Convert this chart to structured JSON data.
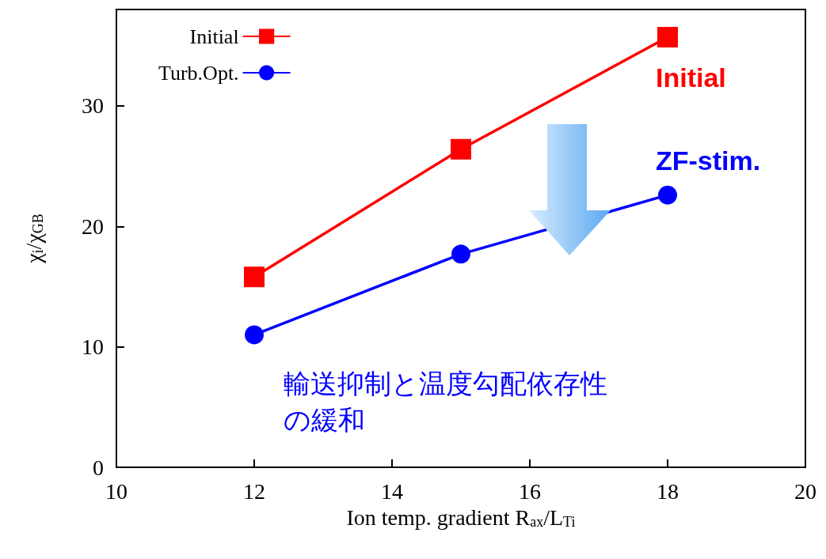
{
  "chart_data": {
    "type": "line",
    "xlabel": "Ion temp. gradient R$_{ax}$/L$_{Ti}$",
    "ylabel": "χ$_{i}$/χ$_{GB}$",
    "x": [
      12,
      15,
      18
    ],
    "series": [
      {
        "name": "Initial",
        "color": "#ff0000",
        "marker": "square",
        "values": [
          15.8,
          26.4,
          35.7
        ]
      },
      {
        "name": "Turb.Opt.",
        "color": "#0000ff",
        "marker": "circle",
        "values": [
          11.0,
          17.7,
          22.6
        ]
      }
    ],
    "xlim": [
      10,
      20
    ],
    "xticks": [
      10,
      12,
      14,
      16,
      18,
      20
    ],
    "ylim": [
      0,
      38
    ],
    "yticks": [
      0,
      10,
      20,
      30
    ],
    "grid": false,
    "legend": "top left",
    "line_style": "solid",
    "annotations": [
      "Initial",
      "ZF-stim.",
      "輸送抑制と温度勾配依存性の緩和"
    ]
  }
}
